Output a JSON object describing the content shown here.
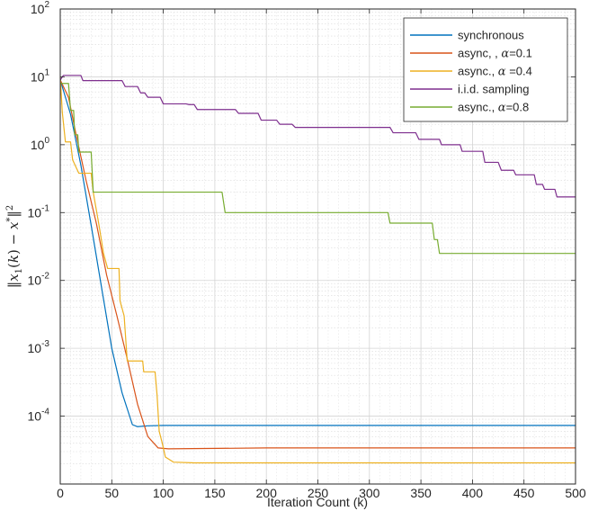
{
  "chart_data": {
    "type": "line",
    "title": "",
    "xlabel": "Iteration Count (k)",
    "ylabel": "||x1(k) − x*||²",
    "xlim": [
      0,
      500
    ],
    "ylim_log10": [
      -5,
      2
    ],
    "yscale": "log",
    "grid": "major and minor",
    "legend_position": "top-right",
    "x_ticks": [
      0,
      50,
      100,
      150,
      200,
      250,
      300,
      350,
      400,
      450,
      500
    ],
    "y_ticks": [
      {
        "base": "10",
        "exp": "2",
        "value": 100
      },
      {
        "base": "10",
        "exp": "1",
        "value": 10
      },
      {
        "base": "10",
        "exp": "0",
        "value": 1
      },
      {
        "base": "10",
        "exp": "-1",
        "value": 0.1
      },
      {
        "base": "10",
        "exp": "-2",
        "value": 0.01
      },
      {
        "base": "10",
        "exp": "-3",
        "value": 0.001
      },
      {
        "base": "10",
        "exp": "-4",
        "value": 0.0001
      }
    ],
    "series": [
      {
        "name": "synchronous",
        "legend_label": "synchronous",
        "color": "#0072BD",
        "step": false,
        "points": [
          [
            0,
            9
          ],
          [
            10,
            2.8
          ],
          [
            20,
            0.5
          ],
          [
            30,
            0.065
          ],
          [
            40,
            0.008
          ],
          [
            50,
            0.001
          ],
          [
            60,
            0.00022
          ],
          [
            70,
            7.5e-05
          ],
          [
            75,
            7e-05
          ],
          [
            85,
            7.2e-05
          ],
          [
            100,
            7.3e-05
          ],
          [
            200,
            7.3e-05
          ],
          [
            300,
            7.3e-05
          ],
          [
            400,
            7.3e-05
          ],
          [
            500,
            7.3e-05
          ]
        ]
      },
      {
        "name": "async, , α=0.1",
        "legend_label": "async, , ",
        "legend_alpha": "=0.1",
        "color": "#D95319",
        "step": false,
        "points": [
          [
            0,
            9
          ],
          [
            8,
            5
          ],
          [
            15,
            1.5
          ],
          [
            25,
            0.3
          ],
          [
            35,
            0.07
          ],
          [
            45,
            0.012
          ],
          [
            55,
            0.003
          ],
          [
            65,
            0.0007
          ],
          [
            75,
            0.00015
          ],
          [
            85,
            5e-05
          ],
          [
            95,
            3.4e-05
          ],
          [
            105,
            3.3e-05
          ],
          [
            200,
            3.4e-05
          ],
          [
            300,
            3.4e-05
          ],
          [
            400,
            3.4e-05
          ],
          [
            500,
            3.4e-05
          ]
        ]
      },
      {
        "name": "async., α =0.4",
        "legend_label": "async., ",
        "legend_alpha": " =0.4",
        "color": "#EDB120",
        "step": true,
        "points": [
          [
            0,
            10
          ],
          [
            2,
            3
          ],
          [
            5,
            1.1
          ],
          [
            10,
            1.1
          ],
          [
            12,
            0.6
          ],
          [
            18,
            0.38
          ],
          [
            30,
            0.38
          ],
          [
            32,
            0.2
          ],
          [
            38,
            0.06
          ],
          [
            42,
            0.025
          ],
          [
            46,
            0.015
          ],
          [
            57,
            0.015
          ],
          [
            58,
            0.005
          ],
          [
            62,
            0.003
          ],
          [
            65,
            0.00065
          ],
          [
            80,
            0.00065
          ],
          [
            81,
            0.00045
          ],
          [
            92,
            0.00045
          ],
          [
            94,
            0.0002
          ],
          [
            96,
            6e-05
          ],
          [
            99,
            4e-05
          ],
          [
            102,
            2.5e-05
          ],
          [
            110,
            2.1e-05
          ],
          [
            130,
            2.05e-05
          ],
          [
            200,
            2.05e-05
          ],
          [
            300,
            2.05e-05
          ],
          [
            400,
            2.05e-05
          ],
          [
            500,
            2.05e-05
          ]
        ]
      },
      {
        "name": "i.i.d. sampling",
        "legend_label": "i.i.d. sampling",
        "color": "#7E2F8E",
        "step": true,
        "points": [
          [
            0,
            9
          ],
          [
            3,
            10.5
          ],
          [
            20,
            10.5
          ],
          [
            22,
            8.8
          ],
          [
            60,
            8.8
          ],
          [
            63,
            7.2
          ],
          [
            75,
            7.2
          ],
          [
            78,
            5.8
          ],
          [
            82,
            5.8
          ],
          [
            85,
            5.0
          ],
          [
            97,
            5.0
          ],
          [
            100,
            4.0
          ],
          [
            122,
            4.0
          ],
          [
            125,
            3.9
          ],
          [
            130,
            3.9
          ],
          [
            133,
            3.3
          ],
          [
            170,
            3.3
          ],
          [
            173,
            2.9
          ],
          [
            192,
            2.9
          ],
          [
            195,
            2.3
          ],
          [
            210,
            2.3
          ],
          [
            213,
            2.0
          ],
          [
            225,
            2.0
          ],
          [
            228,
            1.8
          ],
          [
            320,
            1.8
          ],
          [
            323,
            1.5
          ],
          [
            345,
            1.5
          ],
          [
            348,
            1.2
          ],
          [
            368,
            1.2
          ],
          [
            370,
            1.0
          ],
          [
            388,
            1.0
          ],
          [
            390,
            0.8
          ],
          [
            410,
            0.8
          ],
          [
            412,
            0.55
          ],
          [
            425,
            0.55
          ],
          [
            428,
            0.42
          ],
          [
            440,
            0.42
          ],
          [
            442,
            0.36
          ],
          [
            460,
            0.36
          ],
          [
            462,
            0.26
          ],
          [
            468,
            0.26
          ],
          [
            470,
            0.22
          ],
          [
            480,
            0.22
          ],
          [
            482,
            0.17
          ],
          [
            500,
            0.17
          ]
        ]
      },
      {
        "name": "async., α=0.8",
        "legend_label": "async., ",
        "legend_alpha": "=0.8",
        "color": "#77AC30",
        "step": true,
        "points": [
          [
            0,
            8
          ],
          [
            8,
            8
          ],
          [
            10,
            3.2
          ],
          [
            13,
            3.2
          ],
          [
            14,
            1.4
          ],
          [
            17,
            1.4
          ],
          [
            18,
            0.78
          ],
          [
            30,
            0.78
          ],
          [
            32,
            0.2
          ],
          [
            157,
            0.2
          ],
          [
            160,
            0.1
          ],
          [
            318,
            0.1
          ],
          [
            320,
            0.07
          ],
          [
            361,
            0.07
          ],
          [
            363,
            0.04
          ],
          [
            366,
            0.04
          ],
          [
            368,
            0.025
          ],
          [
            500,
            0.025
          ]
        ]
      }
    ]
  }
}
